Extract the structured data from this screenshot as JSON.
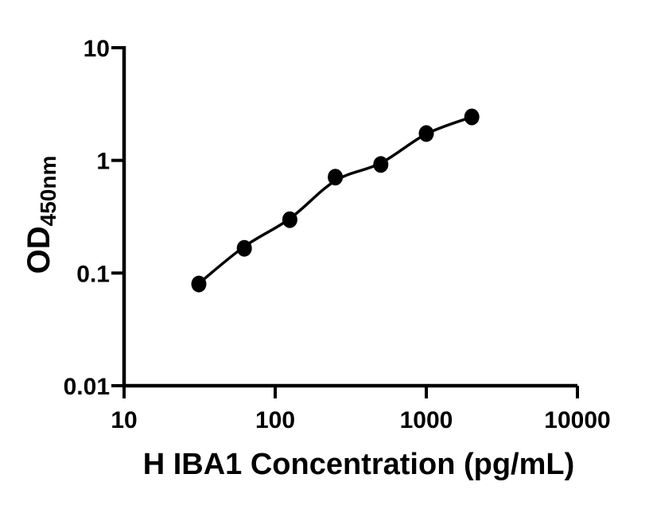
{
  "chart_data": {
    "type": "scatter",
    "title": "",
    "xlabel": "H IBA1 Concentration (pg/mL)",
    "ylabel": {
      "base": "OD",
      "subscript": "450nm"
    },
    "x_scale": "log10",
    "y_scale": "log10",
    "xlim": [
      10,
      10000
    ],
    "ylim": [
      0.01,
      10
    ],
    "grid": false,
    "legend": "none",
    "x_ticks": [
      {
        "value": 10,
        "label": "10"
      },
      {
        "value": 100,
        "label": "100"
      },
      {
        "value": 1000,
        "label": "1000"
      },
      {
        "value": 10000,
        "label": "10000"
      }
    ],
    "y_ticks": [
      {
        "value": 10,
        "label": "10"
      },
      {
        "value": 1,
        "label": "1"
      },
      {
        "value": 0.1,
        "label": "0.1"
      },
      {
        "value": 0.01,
        "label": "0.01"
      }
    ],
    "series": [
      {
        "name": "standards",
        "marker": "filled-circle",
        "color": "#000000",
        "points": [
          {
            "x": 31.25,
            "y": 0.08
          },
          {
            "x": 62.5,
            "y": 0.166
          },
          {
            "x": 125,
            "y": 0.298
          },
          {
            "x": 250,
            "y": 0.71
          },
          {
            "x": 500,
            "y": 0.92
          },
          {
            "x": 1000,
            "y": 1.73
          },
          {
            "x": 2000,
            "y": 2.43
          }
        ]
      }
    ],
    "fit_curve": {
      "name": "fitted-standard-curve",
      "color": "#000000",
      "samples": [
        {
          "x": 31.25,
          "y": 0.081
        },
        {
          "x": 62.5,
          "y": 0.172
        },
        {
          "x": 125,
          "y": 0.304
        },
        {
          "x": 250,
          "y": 0.66
        },
        {
          "x": 500,
          "y": 0.945
        },
        {
          "x": 1000,
          "y": 1.716
        },
        {
          "x": 2000,
          "y": 2.43
        }
      ]
    }
  },
  "colors": {
    "background": "#ffffff",
    "ink": "#000000"
  }
}
